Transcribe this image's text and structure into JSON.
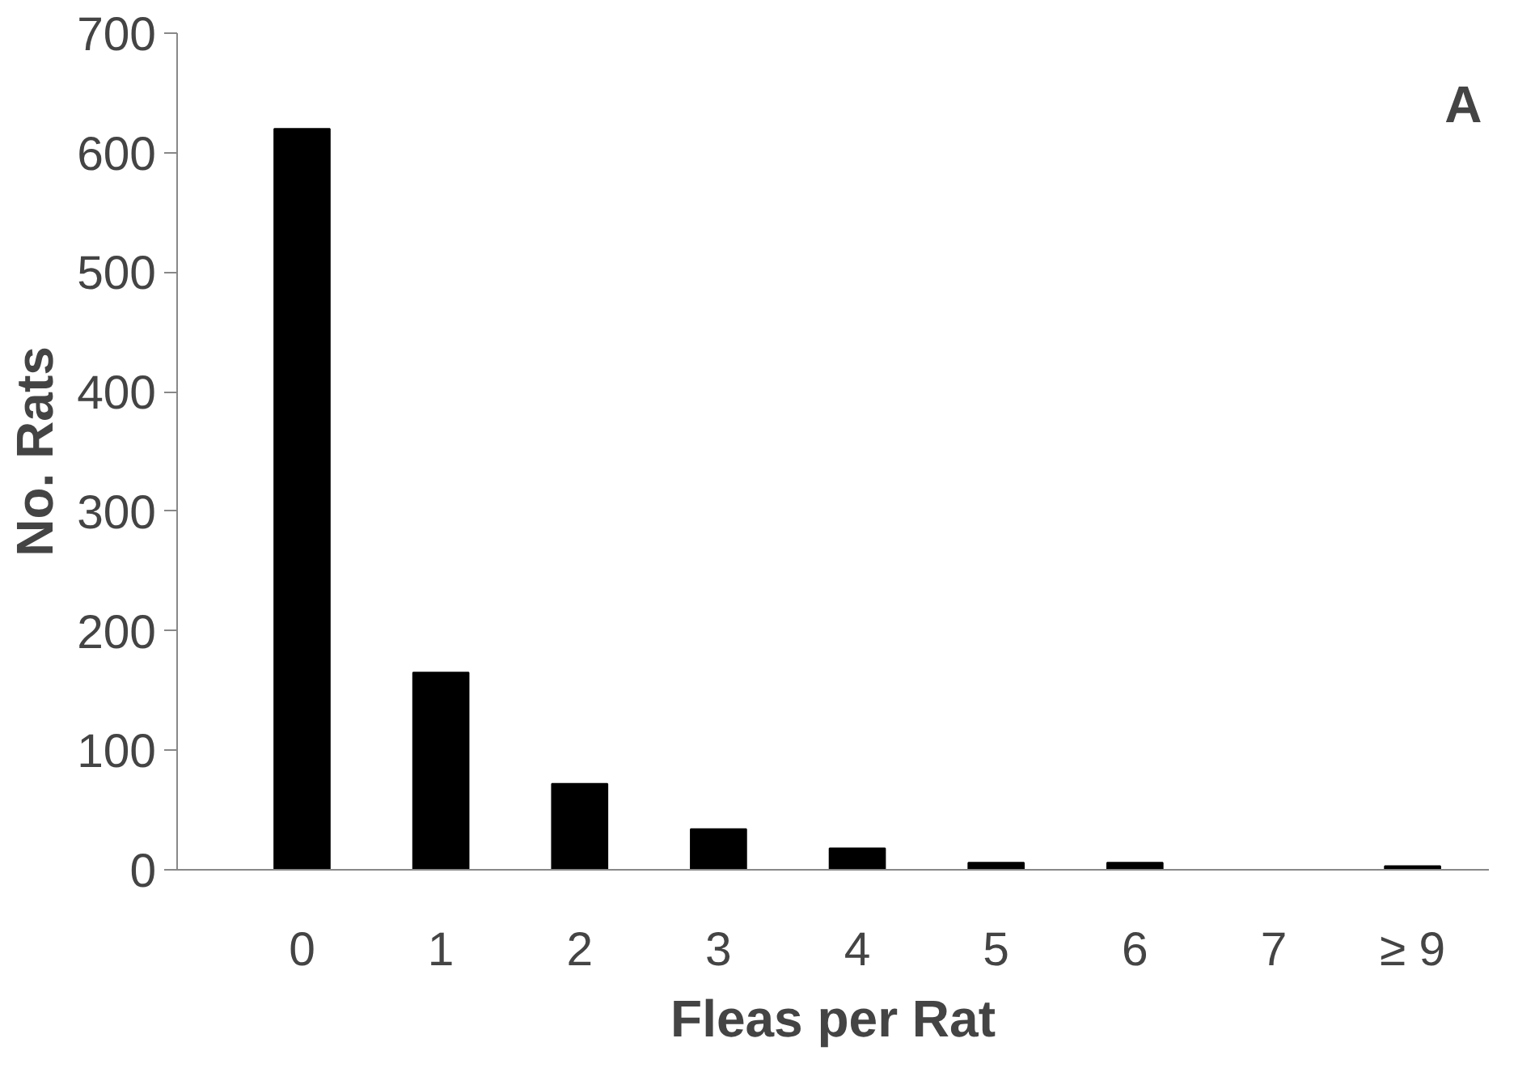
{
  "chart_data": {
    "type": "bar",
    "xlabel": "Fleas per Rat",
    "ylabel": "No. Rats",
    "categories": [
      "0",
      "1",
      "2",
      "3",
      "4",
      "5",
      "6",
      "7",
      "≥ 9"
    ],
    "values": [
      620,
      165,
      72,
      34,
      18,
      6,
      6,
      0,
      3
    ],
    "color": "#000000",
    "ylim": [
      0,
      700
    ],
    "yticks": [
      0,
      100,
      200,
      300,
      400,
      500,
      600,
      700
    ],
    "grid": false,
    "annotations": [
      "A"
    ]
  }
}
